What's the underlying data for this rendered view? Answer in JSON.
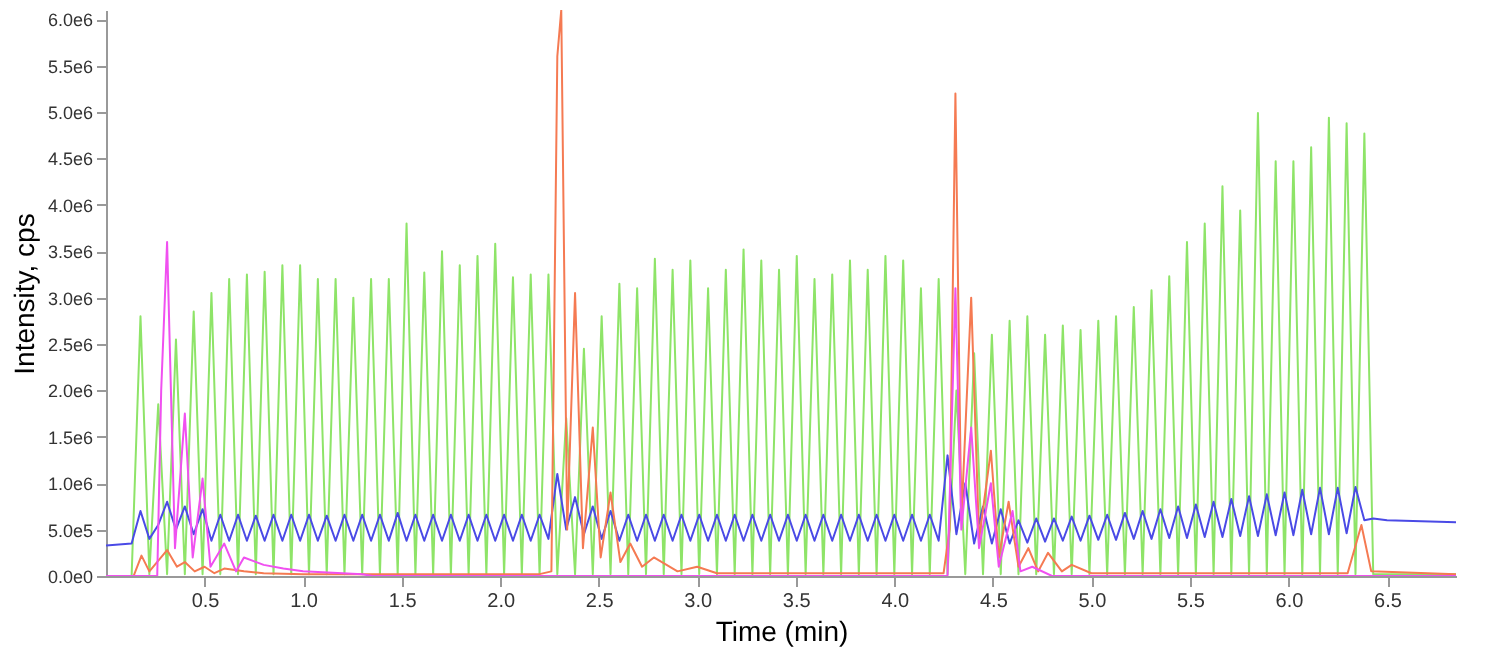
{
  "chart_data": {
    "type": "line",
    "xlabel": "Time (min)",
    "ylabel": "Intensity, cps",
    "xlim": [
      0,
      6.85
    ],
    "ylim": [
      0,
      6100000
    ],
    "xticks": [
      {
        "value": 0.5,
        "label": "0.5"
      },
      {
        "value": 1,
        "label": "1.0"
      },
      {
        "value": 1.5,
        "label": "1.5"
      },
      {
        "value": 2,
        "label": "2.0"
      },
      {
        "value": 2.5,
        "label": "2.5"
      },
      {
        "value": 3,
        "label": "3.0"
      },
      {
        "value": 3.5,
        "label": "3.5"
      },
      {
        "value": 4,
        "label": "4.0"
      },
      {
        "value": 4.5,
        "label": "4.5"
      },
      {
        "value": 5,
        "label": "5.0"
      },
      {
        "value": 5.5,
        "label": "5.5"
      },
      {
        "value": 6,
        "label": "6.0"
      },
      {
        "value": 6.5,
        "label": "6.5"
      }
    ],
    "yticks": [
      {
        "value": 0,
        "label": "0.0e0"
      },
      {
        "value": 500000,
        "label": "5.0e5"
      },
      {
        "value": 1000000,
        "label": "1.0e6"
      },
      {
        "value": 1500000,
        "label": "1.5e6"
      },
      {
        "value": 2000000,
        "label": "2.0e6"
      },
      {
        "value": 2500000,
        "label": "2.5e6"
      },
      {
        "value": 3000000,
        "label": "3.0e6"
      },
      {
        "value": 3500000,
        "label": "3.5e6"
      },
      {
        "value": 4000000,
        "label": "4.0e6"
      },
      {
        "value": 4500000,
        "label": "4.5e6"
      },
      {
        "value": 5000000,
        "label": "5.0e6"
      },
      {
        "value": 5500000,
        "label": "5.5e6"
      },
      {
        "value": 6000000,
        "label": "6.0e6"
      }
    ],
    "grid": false,
    "legend": false,
    "marker": "none",
    "line_style": "solid",
    "x": [
      0,
      0.13,
      0.175,
      0.22,
      0.265,
      0.31,
      0.355,
      0.4,
      0.445,
      0.49,
      0.535,
      0.58,
      0.625,
      0.67,
      0.715,
      0.76,
      0.805,
      0.85,
      0.895,
      0.94,
      0.985,
      1.03,
      1.075,
      1.12,
      1.165,
      1.21,
      1.255,
      1.3,
      1.345,
      1.39,
      1.435,
      1.48,
      1.525,
      1.57,
      1.615,
      1.66,
      1.705,
      1.75,
      1.795,
      1.84,
      1.885,
      1.93,
      1.975,
      2.02,
      2.065,
      2.11,
      2.155,
      2.2,
      2.245,
      2.29,
      2.335,
      2.38,
      2.425,
      2.47,
      2.515,
      2.56,
      2.605,
      2.65,
      2.695,
      2.74,
      2.785,
      2.83,
      2.875,
      2.92,
      2.965,
      3.01,
      3.055,
      3.1,
      3.145,
      3.19,
      3.235,
      3.28,
      3.325,
      3.37,
      3.415,
      3.46,
      3.505,
      3.55,
      3.595,
      3.64,
      3.685,
      3.73,
      3.775,
      3.82,
      3.865,
      3.91,
      3.955,
      4.0,
      4.045,
      4.09,
      4.135,
      4.18,
      4.225,
      4.27,
      4.315,
      4.36,
      4.405,
      4.45,
      4.495,
      4.54,
      4.585,
      4.63,
      4.675,
      4.72,
      4.765,
      4.81,
      4.855,
      4.9,
      4.945,
      4.99,
      5.035,
      5.08,
      5.125,
      5.17,
      5.215,
      5.26,
      5.305,
      5.35,
      5.395,
      5.44,
      5.485,
      5.53,
      5.575,
      5.62,
      5.665,
      5.71,
      5.755,
      5.8,
      5.845,
      5.89,
      5.935,
      5.98,
      6.025,
      6.07,
      6.115,
      6.16,
      6.205,
      6.25,
      6.295,
      6.34,
      6.385,
      6.43,
      6.5,
      6.85
    ],
    "series": [
      {
        "color": "#8ee468",
        "values": [
          0,
          0,
          2800000.0,
          20000.0,
          1850000.0,
          20000.0,
          2550000.0,
          20000.0,
          2850000.0,
          20000.0,
          3050000.0,
          20000.0,
          3200000.0,
          20000.0,
          3250000.0,
          20000.0,
          3280000.0,
          20000.0,
          3350000.0,
          20000.0,
          3350000.0,
          20000.0,
          3200000.0,
          20000.0,
          3200000.0,
          20000.0,
          3000000.0,
          20000.0,
          3200000.0,
          20000.0,
          3200000.0,
          20000.0,
          3800000.0,
          20000.0,
          3270000.0,
          20000.0,
          3500000.0,
          20000.0,
          3350000.0,
          20000.0,
          3450000.0,
          20000.0,
          3580000.0,
          20000.0,
          3220000.0,
          20000.0,
          3250000.0,
          20000.0,
          3250000.0,
          20000.0,
          1700000.0,
          20000.0,
          2450000.0,
          20000.0,
          2800000.0,
          20000.0,
          3150000.0,
          20000.0,
          3100000.0,
          20000.0,
          3420000.0,
          20000.0,
          3300000.0,
          20000.0,
          3400000.0,
          20000.0,
          3100000.0,
          20000.0,
          3300000.0,
          20000.0,
          3520000.0,
          20000.0,
          3400000.0,
          20000.0,
          3300000.0,
          20000.0,
          3450000.0,
          20000.0,
          3200000.0,
          20000.0,
          3250000.0,
          20000.0,
          3400000.0,
          20000.0,
          3300000.0,
          20000.0,
          3450000.0,
          20000.0,
          3400000.0,
          20000.0,
          3100000.0,
          20000.0,
          3200000.0,
          20000.0,
          2000000.0,
          20000.0,
          2400000.0,
          20000.0,
          2600000.0,
          20000.0,
          2750000.0,
          20000.0,
          2800000.0,
          20000.0,
          2600000.0,
          20000.0,
          2700000.0,
          20000.0,
          2650000.0,
          20000.0,
          2750000.0,
          20000.0,
          2800000.0,
          20000.0,
          2900000.0,
          20000.0,
          3080000.0,
          20000.0,
          3230000.0,
          20000.0,
          3600000.0,
          20000.0,
          3800000.0,
          20000.0,
          4200000.0,
          20000.0,
          3940000.0,
          20000.0,
          4990000.0,
          20000.0,
          4470000.0,
          20000.0,
          4470000.0,
          20000.0,
          4620000.0,
          20000.0,
          4940000.0,
          20000.0,
          4880000.0,
          20000.0,
          4770000.0,
          20000.0,
          20000.0,
          20000.0
        ]
      },
      {
        "color": "#4a4ae6",
        "values": [
          330000.0,
          350000.0,
          700000.0,
          400000.0,
          550000.0,
          800000.0,
          500000.0,
          750000.0,
          450000.0,
          720000.0,
          380000.0,
          660000.0,
          380000.0,
          660000.0,
          380000.0,
          650000.0,
          380000.0,
          660000.0,
          380000.0,
          660000.0,
          380000.0,
          660000.0,
          380000.0,
          650000.0,
          380000.0,
          660000.0,
          380000.0,
          660000.0,
          380000.0,
          660000.0,
          380000.0,
          680000.0,
          380000.0,
          660000.0,
          380000.0,
          660000.0,
          380000.0,
          660000.0,
          380000.0,
          660000.0,
          380000.0,
          660000.0,
          380000.0,
          660000.0,
          380000.0,
          660000.0,
          380000.0,
          660000.0,
          400000.0,
          1100000.0,
          500000.0,
          850000.0,
          450000.0,
          750000.0,
          400000.0,
          700000.0,
          380000.0,
          660000.0,
          380000.0,
          660000.0,
          380000.0,
          660000.0,
          380000.0,
          660000.0,
          380000.0,
          660000.0,
          380000.0,
          660000.0,
          380000.0,
          660000.0,
          380000.0,
          660000.0,
          380000.0,
          660000.0,
          380000.0,
          660000.0,
          380000.0,
          660000.0,
          380000.0,
          660000.0,
          380000.0,
          660000.0,
          380000.0,
          660000.0,
          380000.0,
          660000.0,
          380000.0,
          660000.0,
          380000.0,
          660000.0,
          380000.0,
          660000.0,
          380000.0,
          1300000.0,
          450000.0,
          1000000.0,
          350000.0,
          750000.0,
          350000.0,
          720000.0,
          350000.0,
          600000.0,
          360000.0,
          620000.0,
          370000.0,
          620000.0,
          380000.0,
          640000.0,
          380000.0,
          650000.0,
          390000.0,
          660000.0,
          390000.0,
          680000.0,
          400000.0,
          700000.0,
          400000.0,
          720000.0,
          410000.0,
          750000.0,
          410000.0,
          770000.0,
          420000.0,
          800000.0,
          420000.0,
          830000.0,
          430000.0,
          860000.0,
          430000.0,
          880000.0,
          440000.0,
          900000.0,
          440000.0,
          930000.0,
          450000.0,
          950000.0,
          450000.0,
          950000.0,
          460000.0,
          960000.0,
          600000.0,
          620000.0,
          600000.0,
          580000.0
        ]
      },
      {
        "color": "#f57a52",
        "x": [
          0,
          0.14,
          0.18,
          0.22,
          0.31,
          0.36,
          0.4,
          0.45,
          0.5,
          0.55,
          0.6,
          0.7,
          0.8,
          1.0,
          2.2,
          2.26,
          2.29,
          2.31,
          2.34,
          2.38,
          2.42,
          2.47,
          2.51,
          2.56,
          2.61,
          2.66,
          2.72,
          2.78,
          2.9,
          3.0,
          3.1,
          4.25,
          4.28,
          4.31,
          4.34,
          4.39,
          4.43,
          4.49,
          4.53,
          4.58,
          4.63,
          4.68,
          4.73,
          4.78,
          4.85,
          4.9,
          5.0,
          6.3,
          6.37,
          6.42,
          6.85
        ],
        "values": [
          0,
          0,
          220000.0,
          50000.0,
          280000.0,
          100000.0,
          150000.0,
          50000.0,
          100000.0,
          30000.0,
          80000.0,
          50000.0,
          30000.0,
          20000.0,
          20000.0,
          50000.0,
          5600000.0,
          6100000.0,
          500000.0,
          3050000.0,
          300000.0,
          1600000.0,
          200000.0,
          900000.0,
          150000.0,
          350000.0,
          100000.0,
          200000.0,
          50000.0,
          100000.0,
          30000.0,
          30000.0,
          500000.0,
          5200000.0,
          600000.0,
          3000000.0,
          400000.0,
          1350000.0,
          200000.0,
          800000.0,
          100000.0,
          300000.0,
          50000.0,
          250000.0,
          50000.0,
          120000.0,
          30000.0,
          30000.0,
          550000.0,
          50000.0,
          20000.0
        ]
      },
      {
        "color": "#f050f0",
        "x": [
          0,
          0.26,
          0.28,
          0.31,
          0.35,
          0.4,
          0.44,
          0.49,
          0.53,
          0.6,
          0.66,
          0.7,
          0.8,
          0.9,
          1.0,
          1.3,
          1.35,
          4.27,
          4.31,
          4.34,
          4.39,
          4.43,
          4.49,
          4.53,
          4.6,
          4.64,
          4.7,
          4.8,
          6.85
        ],
        "values": [
          0,
          0,
          2000000.0,
          3600000.0,
          300000.0,
          1750000.0,
          200000.0,
          1050000.0,
          100000.0,
          350000.0,
          50000.0,
          200000.0,
          120000.0,
          80000.0,
          50000.0,
          20000.0,
          0,
          0,
          3100000.0,
          500000.0,
          1600000.0,
          300000.0,
          1000000.0,
          100000.0,
          700000.0,
          50000.0,
          100000.0,
          0,
          0
        ]
      }
    ]
  }
}
